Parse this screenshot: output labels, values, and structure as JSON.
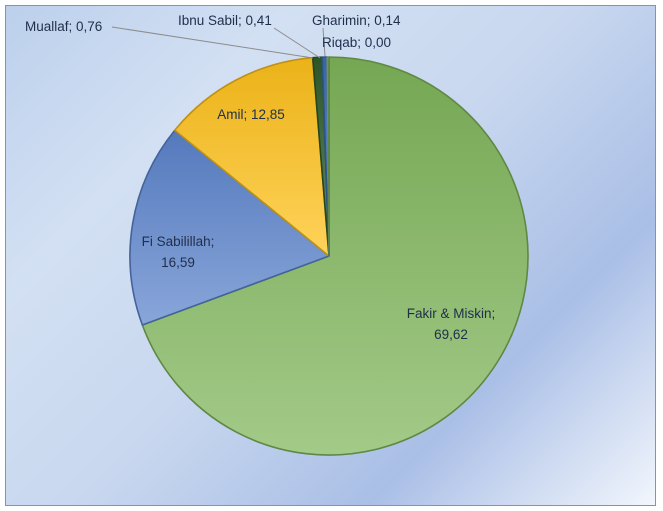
{
  "chart_data": {
    "type": "pie",
    "title": "",
    "slices": [
      {
        "label": "Fakir & Miskin",
        "value": 69.62,
        "value_text": "69,62",
        "color": "#7fb55a"
      },
      {
        "label": "Fi Sabilillah",
        "value": 16.59,
        "value_text": "16,59",
        "color": "#5b84cc"
      },
      {
        "label": "Amil",
        "value": 12.85,
        "value_text": "12,85",
        "color": "#ffc21a"
      },
      {
        "label": "Muallaf",
        "value": 0.76,
        "value_text": "0,76",
        "color": "#2f5c2a"
      },
      {
        "label": "Ibnu Sabil",
        "value": 0.41,
        "value_text": "0,41",
        "color": "#3c6eb4"
      },
      {
        "label": "Gharimin",
        "value": 0.14,
        "value_text": "0,14",
        "color": "#9ac27a"
      },
      {
        "label": "Riqab",
        "value": 0.0,
        "value_text": "0,00",
        "color": "#4a7a3a"
      }
    ],
    "start_angle_deg": 0,
    "direction": "clockwise",
    "legend": "none",
    "data_labels": "category; value"
  }
}
